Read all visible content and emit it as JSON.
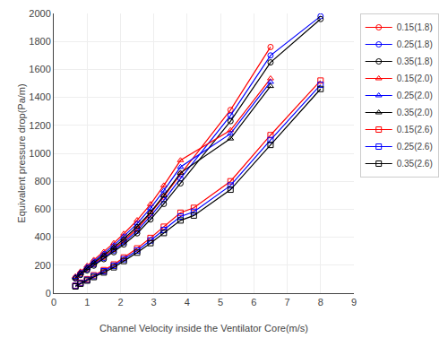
{
  "chart_data": {
    "type": "line",
    "x_label": "Channel Velocity inside the Ventilator Core(m/s)",
    "y_label": "Equivalent pressure drop(Pa/m)",
    "xlim": [
      0,
      9
    ],
    "ylim": [
      0,
      2000
    ],
    "xticks": [
      0,
      1,
      2,
      3,
      4,
      5,
      6,
      7,
      8,
      9
    ],
    "yticks": [
      0,
      200,
      400,
      600,
      800,
      1000,
      1200,
      1400,
      1600,
      1800,
      2000
    ],
    "grid": true,
    "legend": "right",
    "series": [
      {
        "name": "0.15(1.8)",
        "color": "red",
        "marker": "circle",
        "x": [
          0.65,
          0.8,
          1.0,
          1.2,
          1.5,
          1.8,
          2.1,
          2.5,
          2.9,
          3.3,
          3.8,
          5.3,
          6.5
        ],
        "values": [
          110,
          140,
          175,
          210,
          260,
          315,
          375,
          460,
          570,
          690,
          850,
          1310,
          1760
        ]
      },
      {
        "name": "0.25(1.8)",
        "color": "blue",
        "marker": "circle",
        "x": [
          0.65,
          0.8,
          1.0,
          1.2,
          1.5,
          1.8,
          2.1,
          2.5,
          2.9,
          3.3,
          3.8,
          5.3,
          6.5,
          8.0
        ],
        "values": [
          108,
          135,
          170,
          205,
          252,
          305,
          362,
          445,
          550,
          665,
          820,
          1270,
          1700,
          1980
        ]
      },
      {
        "name": "0.35(1.8)",
        "color": "black",
        "marker": "circle",
        "x": [
          0.65,
          0.8,
          1.0,
          1.2,
          1.5,
          1.8,
          2.1,
          2.5,
          2.9,
          3.3,
          3.8,
          5.3,
          6.5,
          8.0
        ],
        "values": [
          105,
          130,
          163,
          197,
          243,
          293,
          348,
          428,
          527,
          638,
          785,
          1230,
          1650,
          1960
        ]
      },
      {
        "name": "0.15(2.0)",
        "color": "red",
        "marker": "triangle-up",
        "x": [
          0.65,
          0.8,
          1.0,
          1.2,
          1.5,
          1.8,
          2.1,
          2.5,
          2.9,
          3.3,
          3.8,
          5.3,
          6.5
        ],
        "values": [
          120,
          155,
          196,
          238,
          295,
          358,
          425,
          522,
          636,
          770,
          950,
          1165,
          1535
        ]
      },
      {
        "name": "0.25(2.0)",
        "color": "blue",
        "marker": "triangle-up",
        "x": [
          0.65,
          0.8,
          1.0,
          1.2,
          1.5,
          1.8,
          2.1,
          2.5,
          2.9,
          3.3,
          3.8,
          5.3,
          6.5
        ],
        "values": [
          115,
          148,
          188,
          228,
          282,
          342,
          406,
          498,
          606,
          733,
          902,
          1140,
          1510
        ]
      },
      {
        "name": "0.35(2.0)",
        "color": "black",
        "marker": "triangle-up",
        "x": [
          0.65,
          0.8,
          1.0,
          1.2,
          1.5,
          1.8,
          2.1,
          2.5,
          2.9,
          3.3,
          3.8,
          5.3,
          6.5
        ],
        "values": [
          110,
          142,
          180,
          218,
          270,
          327,
          388,
          476,
          577,
          698,
          860,
          1105,
          1480
        ]
      },
      {
        "name": "0.15(2.6)",
        "color": "red",
        "marker": "square",
        "x": [
          0.65,
          0.8,
          1.0,
          1.2,
          1.5,
          1.8,
          2.1,
          2.5,
          2.9,
          3.3,
          3.8,
          4.2,
          5.3,
          6.5,
          8.0
        ],
        "values": [
          55,
          75,
          100,
          128,
          165,
          205,
          255,
          320,
          395,
          475,
          575,
          610,
          800,
          1130,
          1520
        ]
      },
      {
        "name": "0.25(2.6)",
        "color": "blue",
        "marker": "square",
        "x": [
          0.65,
          0.8,
          1.0,
          1.2,
          1.5,
          1.8,
          2.1,
          2.5,
          2.9,
          3.3,
          3.8,
          4.2,
          5.3,
          6.5,
          8.0
        ],
        "values": [
          52,
          71,
          95,
          122,
          157,
          196,
          243,
          305,
          377,
          452,
          548,
          582,
          770,
          1095,
          1490
        ]
      },
      {
        "name": "0.35(2.6)",
        "color": "black",
        "marker": "square",
        "x": [
          0.65,
          0.8,
          1.0,
          1.2,
          1.5,
          1.8,
          2.1,
          2.5,
          2.9,
          3.3,
          3.8,
          4.2,
          5.3,
          6.5,
          8.0
        ],
        "values": [
          48,
          67,
          90,
          115,
          148,
          185,
          230,
          290,
          358,
          430,
          520,
          555,
          740,
          1060,
          1460
        ]
      }
    ]
  }
}
